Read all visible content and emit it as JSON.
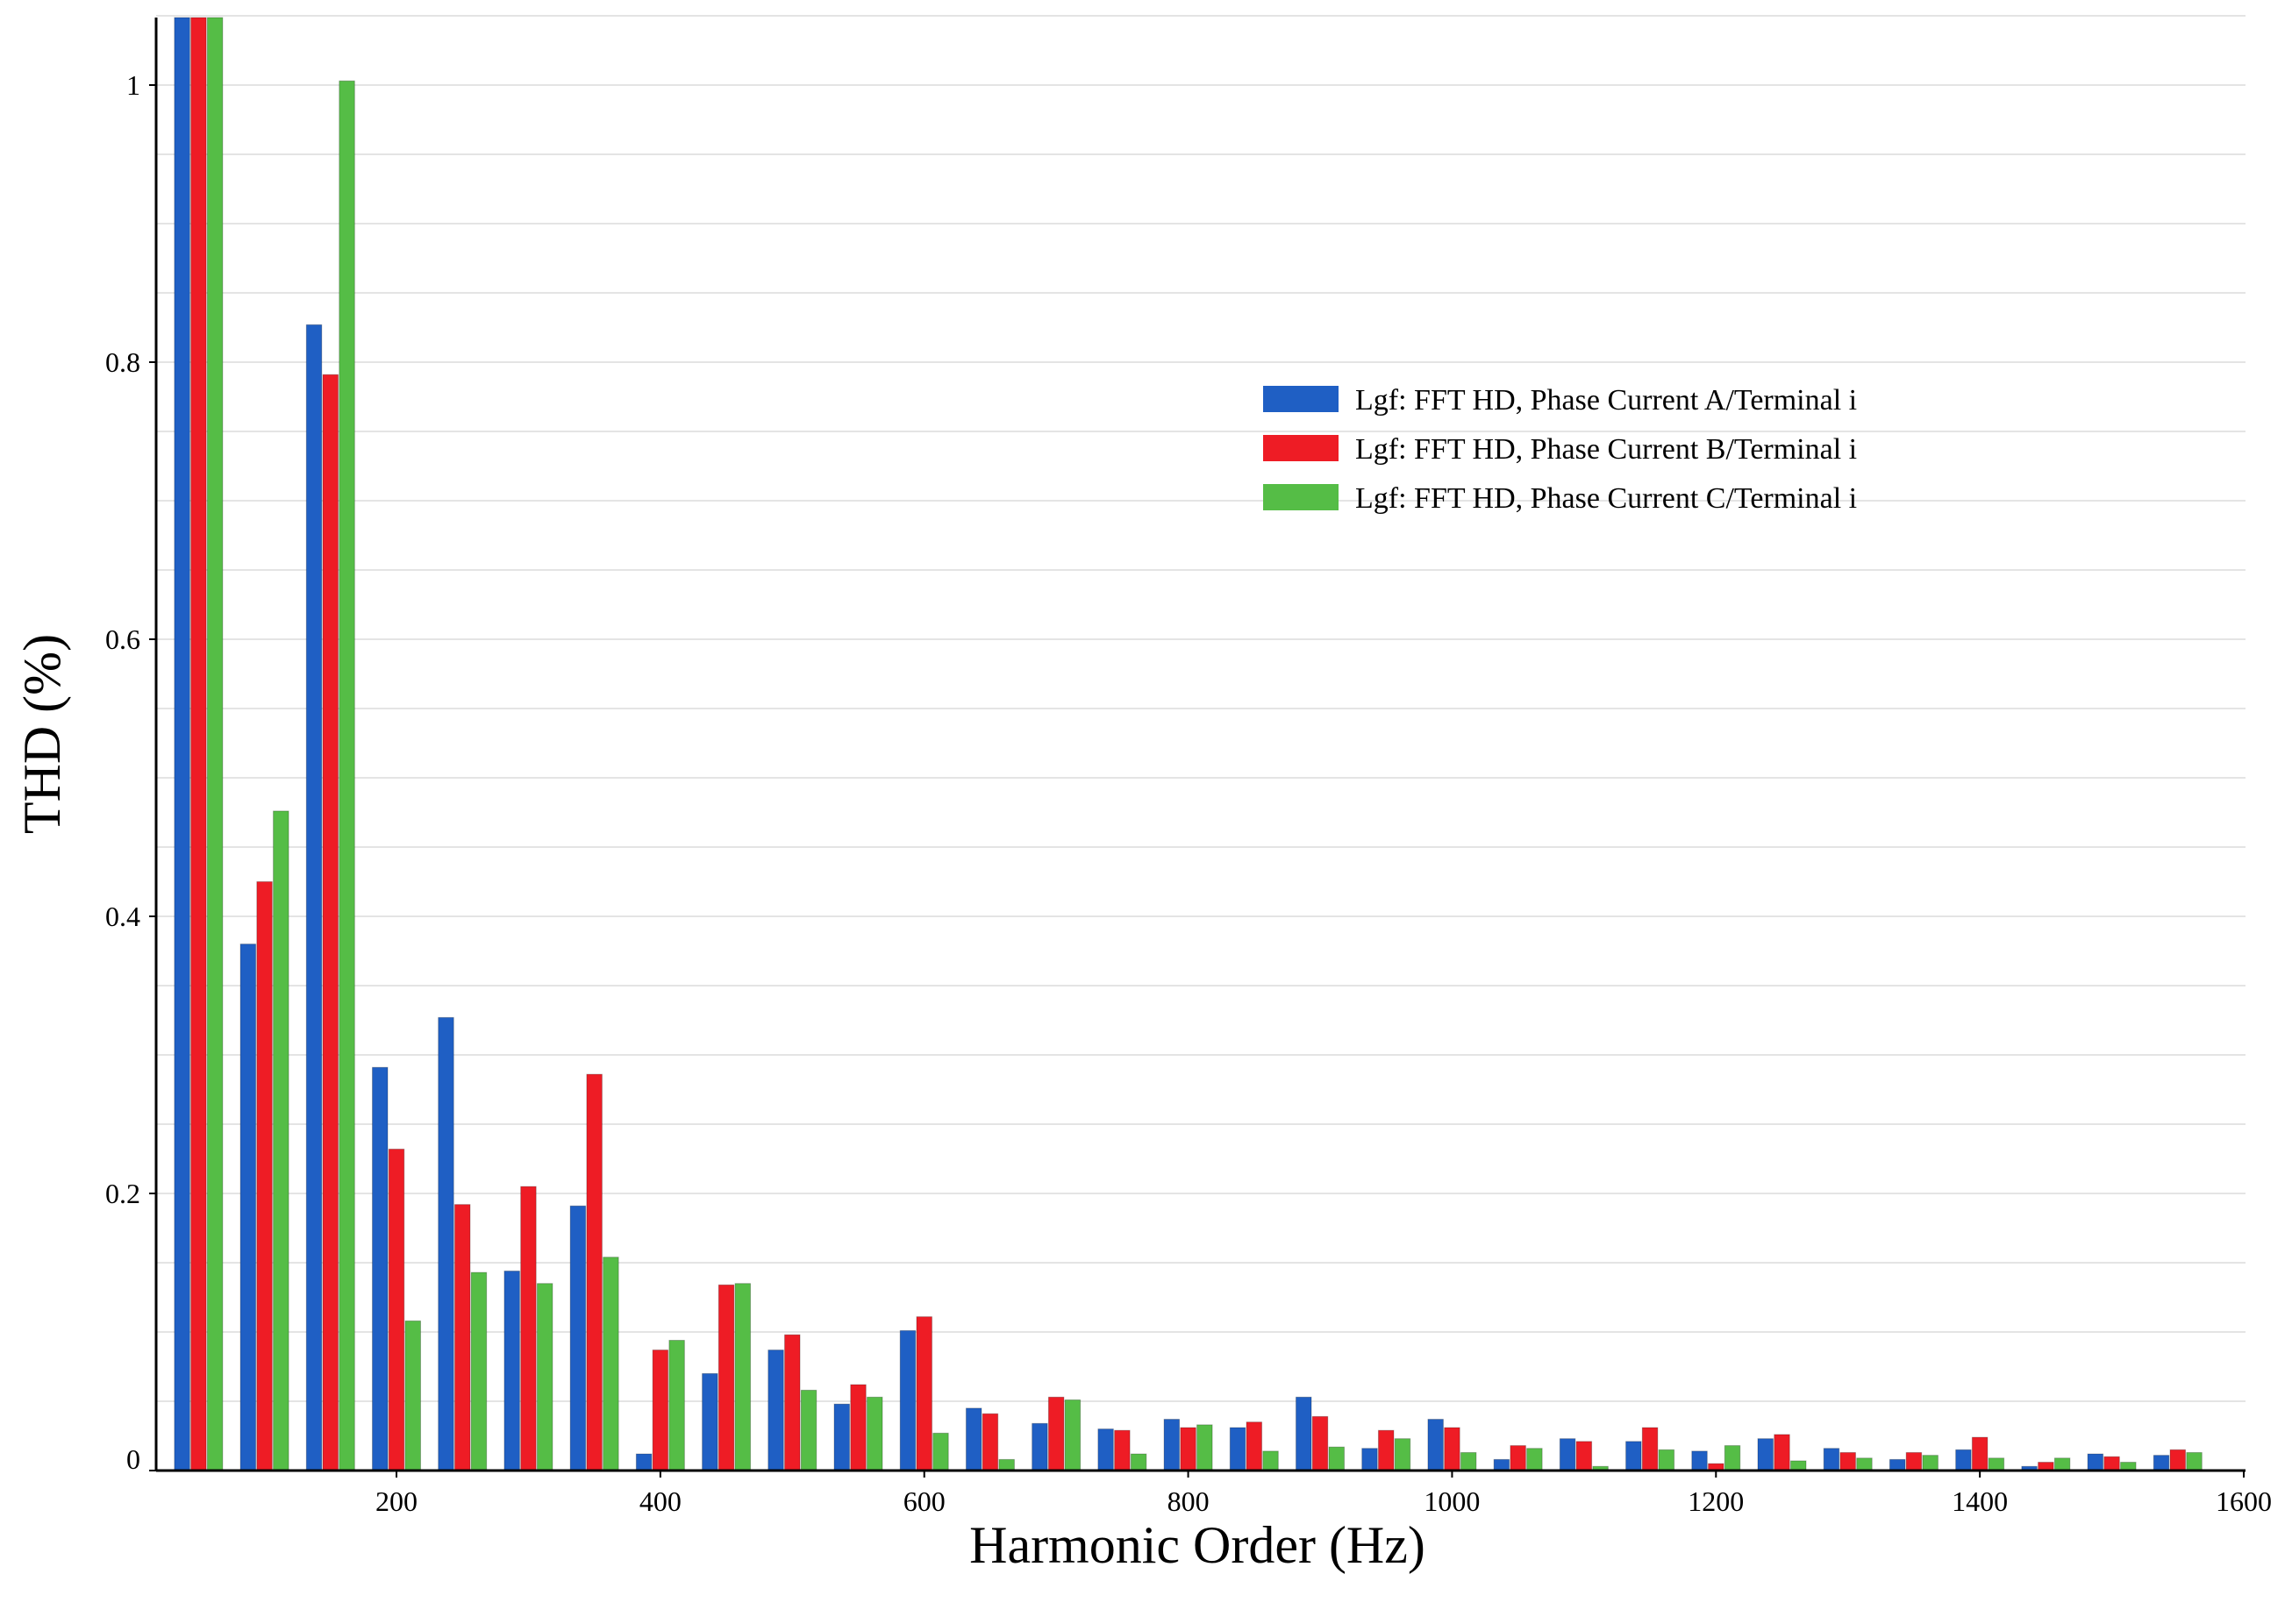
{
  "chart_data": {
    "type": "bar",
    "title": "",
    "xlabel": "Harmonic Order (Hz)",
    "ylabel": "THD (%)",
    "xlim": [
      25,
      1600
    ],
    "ylim": [
      0,
      1.05
    ],
    "x_ticks": [
      "200",
      "400",
      "600",
      "800",
      "1000",
      "1200",
      "1400",
      "1600"
    ],
    "y_ticks": [
      "0",
      "0.2",
      "0.4",
      "0.6",
      "0.8",
      "1"
    ],
    "grid": "horizontal",
    "legend_position": "upper-right",
    "x": [
      50,
      100,
      150,
      200,
      250,
      300,
      350,
      400,
      450,
      500,
      550,
      600,
      650,
      700,
      750,
      800,
      850,
      900,
      950,
      1000,
      1050,
      1100,
      1150,
      1200,
      1250,
      1300,
      1350,
      1400,
      1450,
      1500,
      1550
    ],
    "series": [
      {
        "name": "Lgf: FFT HD, Phase Current A/Terminal i",
        "color": "#1f5fc4",
        "values": [
          1.05,
          0.38,
          0.827,
          0.291,
          0.327,
          0.144,
          0.191,
          0.012,
          0.07,
          0.087,
          0.048,
          0.101,
          0.045,
          0.034,
          0.03,
          0.037,
          0.031,
          0.053,
          0.016,
          0.037,
          0.008,
          0.023,
          0.021,
          0.014,
          0.023,
          0.016,
          0.008,
          0.015,
          0.003,
          0.012,
          0.011
        ]
      },
      {
        "name": "Lgf: FFT HD, Phase Current B/Terminal i",
        "color": "#ee1c25",
        "values": [
          1.05,
          0.425,
          0.791,
          0.232,
          0.192,
          0.205,
          0.286,
          0.087,
          0.134,
          0.098,
          0.062,
          0.111,
          0.041,
          0.053,
          0.029,
          0.031,
          0.035,
          0.039,
          0.029,
          0.031,
          0.018,
          0.021,
          0.031,
          0.005,
          0.026,
          0.013,
          0.013,
          0.024,
          0.006,
          0.01,
          0.015
        ]
      },
      {
        "name": "Lgf: FFT HD, Phase Current C/Terminal i",
        "color": "#55bd46",
        "values": [
          1.05,
          0.476,
          1.003,
          0.108,
          0.143,
          0.135,
          0.154,
          0.094,
          0.135,
          0.058,
          0.053,
          0.027,
          0.008,
          0.051,
          0.012,
          0.033,
          0.014,
          0.017,
          0.023,
          0.013,
          0.016,
          0.003,
          0.015,
          0.018,
          0.007,
          0.009,
          0.011,
          0.009,
          0.009,
          0.006,
          0.013
        ]
      }
    ]
  }
}
